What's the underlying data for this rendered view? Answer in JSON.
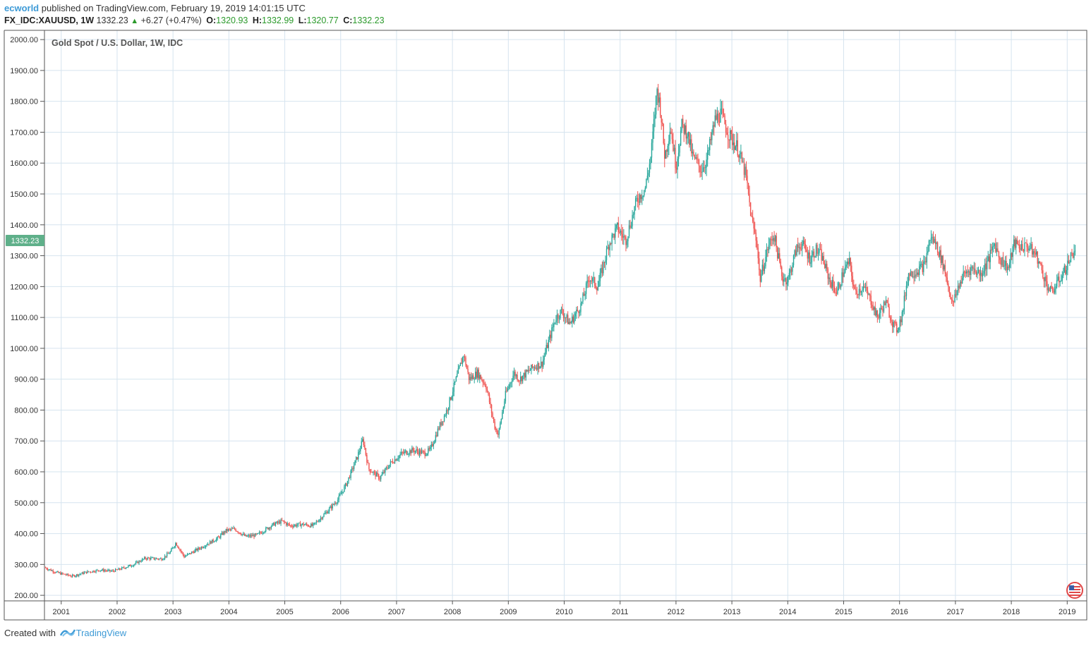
{
  "header": {
    "author": "ecworld",
    "published_text": "published on TradingView.com, February 19, 2019 14:01:15 UTC",
    "symbol": "FX_IDC:XAUUSD, 1W",
    "last": "1332.23",
    "change_arrow": "▲",
    "change": "+6.27 (+0.47%)",
    "open_label": "O:",
    "open": "1320.93",
    "high_label": "H:",
    "high": "1332.99",
    "low_label": "L:",
    "low": "1320.77",
    "close_label": "C:",
    "close": "1332.23"
  },
  "footer": {
    "created_with": "Created with",
    "brand": "TradingView"
  },
  "colors": {
    "up": "#26a69a",
    "down": "#ef5350",
    "grid": "#d6e4ef",
    "price_tag": "#5fb08a",
    "axis_text": "#333333"
  },
  "chart_data": {
    "type": "candlestick",
    "title": "Gold Spot / U.S. Dollar, 1W, IDC",
    "interval": "1W",
    "ylim": [
      182,
      2030
    ],
    "yticks": [
      "2000.00",
      "1900.00",
      "1800.00",
      "1700.00",
      "1600.00",
      "1500.00",
      "1400.00",
      "1300.00",
      "1200.00",
      "1100.00",
      "1000.00",
      "900.00",
      "800.00",
      "700.00",
      "600.00",
      "500.00",
      "400.00",
      "300.00",
      "200.00"
    ],
    "xlim": [
      2000.7,
      2019.35
    ],
    "xticks": [
      "2001",
      "2002",
      "2003",
      "2004",
      "2005",
      "2006",
      "2007",
      "2008",
      "2009",
      "2010",
      "2011",
      "2012",
      "2013",
      "2014",
      "2015",
      "2016",
      "2017",
      "2018",
      "2019"
    ],
    "last_price_label": "1332.23",
    "grid": true,
    "price_path": [
      [
        2000.7,
        290
      ],
      [
        2000.9,
        275
      ],
      [
        2001.0,
        270
      ],
      [
        2001.2,
        262
      ],
      [
        2001.45,
        275
      ],
      [
        2001.7,
        282
      ],
      [
        2001.9,
        278
      ],
      [
        2002.0,
        282
      ],
      [
        2002.3,
        300
      ],
      [
        2002.5,
        320
      ],
      [
        2002.8,
        318
      ],
      [
        2002.95,
        340
      ],
      [
        2003.05,
        370
      ],
      [
        2003.2,
        325
      ],
      [
        2003.5,
        355
      ],
      [
        2003.8,
        385
      ],
      [
        2003.95,
        410
      ],
      [
        2004.1,
        415
      ],
      [
        2004.3,
        390
      ],
      [
        2004.5,
        395
      ],
      [
        2004.8,
        430
      ],
      [
        2004.95,
        440
      ],
      [
        2005.1,
        425
      ],
      [
        2005.3,
        430
      ],
      [
        2005.5,
        425
      ],
      [
        2005.75,
        470
      ],
      [
        2005.95,
        510
      ],
      [
        2006.1,
        560
      ],
      [
        2006.3,
        650
      ],
      [
        2006.4,
        705
      ],
      [
        2006.5,
        610
      ],
      [
        2006.7,
        580
      ],
      [
        2006.9,
        630
      ],
      [
        2007.1,
        660
      ],
      [
        2007.3,
        670
      ],
      [
        2007.5,
        660
      ],
      [
        2007.6,
        670
      ],
      [
        2007.75,
        740
      ],
      [
        2007.9,
        800
      ],
      [
        2008.1,
        920
      ],
      [
        2008.2,
        980
      ],
      [
        2008.3,
        900
      ],
      [
        2008.45,
        920
      ],
      [
        2008.6,
        880
      ],
      [
        2008.75,
        750
      ],
      [
        2008.82,
        720
      ],
      [
        2008.95,
        850
      ],
      [
        2009.1,
        920
      ],
      [
        2009.2,
        900
      ],
      [
        2009.45,
        940
      ],
      [
        2009.6,
        950
      ],
      [
        2009.85,
        1100
      ],
      [
        2009.95,
        1120
      ],
      [
        2010.1,
        1080
      ],
      [
        2010.3,
        1140
      ],
      [
        2010.45,
        1230
      ],
      [
        2010.6,
        1200
      ],
      [
        2010.8,
        1340
      ],
      [
        2010.95,
        1390
      ],
      [
        2011.1,
        1350
      ],
      [
        2011.3,
        1480
      ],
      [
        2011.45,
        1520
      ],
      [
        2011.55,
        1620
      ],
      [
        2011.66,
        1840
      ],
      [
        2011.72,
        1780
      ],
      [
        2011.8,
        1620
      ],
      [
        2011.9,
        1720
      ],
      [
        2012.0,
        1590
      ],
      [
        2012.1,
        1720
      ],
      [
        2012.2,
        1700
      ],
      [
        2012.3,
        1620
      ],
      [
        2012.45,
        1580
      ],
      [
        2012.55,
        1610
      ],
      [
        2012.7,
        1740
      ],
      [
        2012.8,
        1760
      ],
      [
        2012.95,
        1690
      ],
      [
        2013.1,
        1650
      ],
      [
        2013.25,
        1560
      ],
      [
        2013.35,
        1420
      ],
      [
        2013.45,
        1340
      ],
      [
        2013.5,
        1220
      ],
      [
        2013.65,
        1330
      ],
      [
        2013.75,
        1370
      ],
      [
        2013.9,
        1230
      ],
      [
        2014.0,
        1220
      ],
      [
        2014.15,
        1320
      ],
      [
        2014.25,
        1340
      ],
      [
        2014.4,
        1290
      ],
      [
        2014.5,
        1320
      ],
      [
        2014.6,
        1300
      ],
      [
        2014.75,
        1220
      ],
      [
        2014.88,
        1180
      ],
      [
        2015.0,
        1250
      ],
      [
        2015.1,
        1280
      ],
      [
        2015.2,
        1180
      ],
      [
        2015.35,
        1200
      ],
      [
        2015.5,
        1150
      ],
      [
        2015.6,
        1100
      ],
      [
        2015.75,
        1150
      ],
      [
        2015.88,
        1080
      ],
      [
        2015.95,
        1060
      ],
      [
        2016.05,
        1110
      ],
      [
        2016.15,
        1240
      ],
      [
        2016.3,
        1250
      ],
      [
        2016.45,
        1270
      ],
      [
        2016.55,
        1360
      ],
      [
        2016.65,
        1340
      ],
      [
        2016.8,
        1260
      ],
      [
        2016.95,
        1140
      ],
      [
        2017.05,
        1200
      ],
      [
        2017.15,
        1240
      ],
      [
        2017.3,
        1260
      ],
      [
        2017.45,
        1240
      ],
      [
        2017.6,
        1290
      ],
      [
        2017.7,
        1340
      ],
      [
        2017.8,
        1290
      ],
      [
        2017.95,
        1260
      ],
      [
        2018.05,
        1340
      ],
      [
        2018.15,
        1330
      ],
      [
        2018.3,
        1330
      ],
      [
        2018.45,
        1300
      ],
      [
        2018.55,
        1250
      ],
      [
        2018.65,
        1200
      ],
      [
        2018.72,
        1180
      ],
      [
        2018.85,
        1220
      ],
      [
        2018.95,
        1250
      ],
      [
        2019.05,
        1290
      ],
      [
        2019.13,
        1320
      ],
      [
        2019.15,
        1332.23
      ]
    ]
  }
}
